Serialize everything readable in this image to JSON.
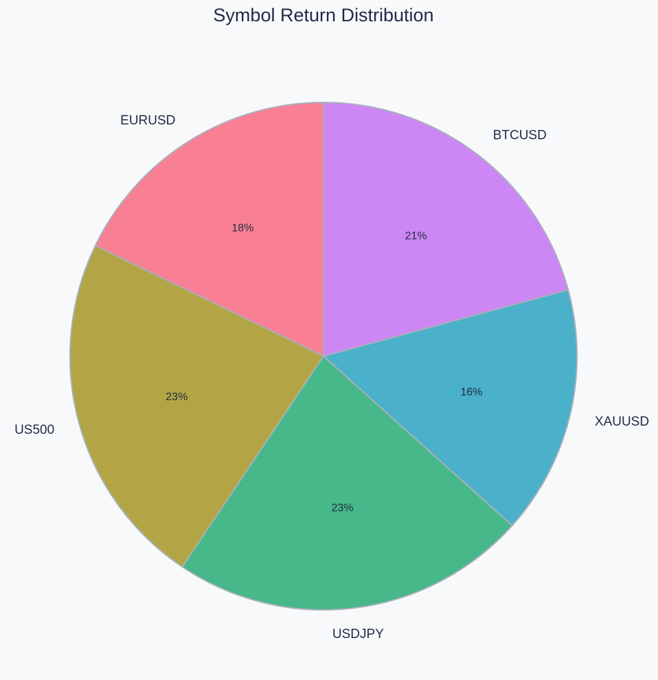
{
  "chart_data": {
    "type": "pie",
    "title": "Symbol Return Distribution",
    "start_angle_deg": 90,
    "direction": "counterclockwise",
    "slices": [
      {
        "label": "EURUSD",
        "value": 18,
        "pct_label": "18%",
        "color": "#f97f94"
      },
      {
        "label": "US500",
        "value": 23,
        "pct_label": "23%",
        "color": "#b3a545"
      },
      {
        "label": "USDJPY",
        "value": 23,
        "pct_label": "23%",
        "color": "#46b889"
      },
      {
        "label": "XAUUSD",
        "value": 16,
        "pct_label": "16%",
        "color": "#4bb0c9"
      },
      {
        "label": "BTCUSD",
        "value": 21,
        "pct_label": "21%",
        "color": "#cd87f4"
      }
    ],
    "edge_color": "#a9b0ba",
    "background": "#f7f9fb"
  }
}
